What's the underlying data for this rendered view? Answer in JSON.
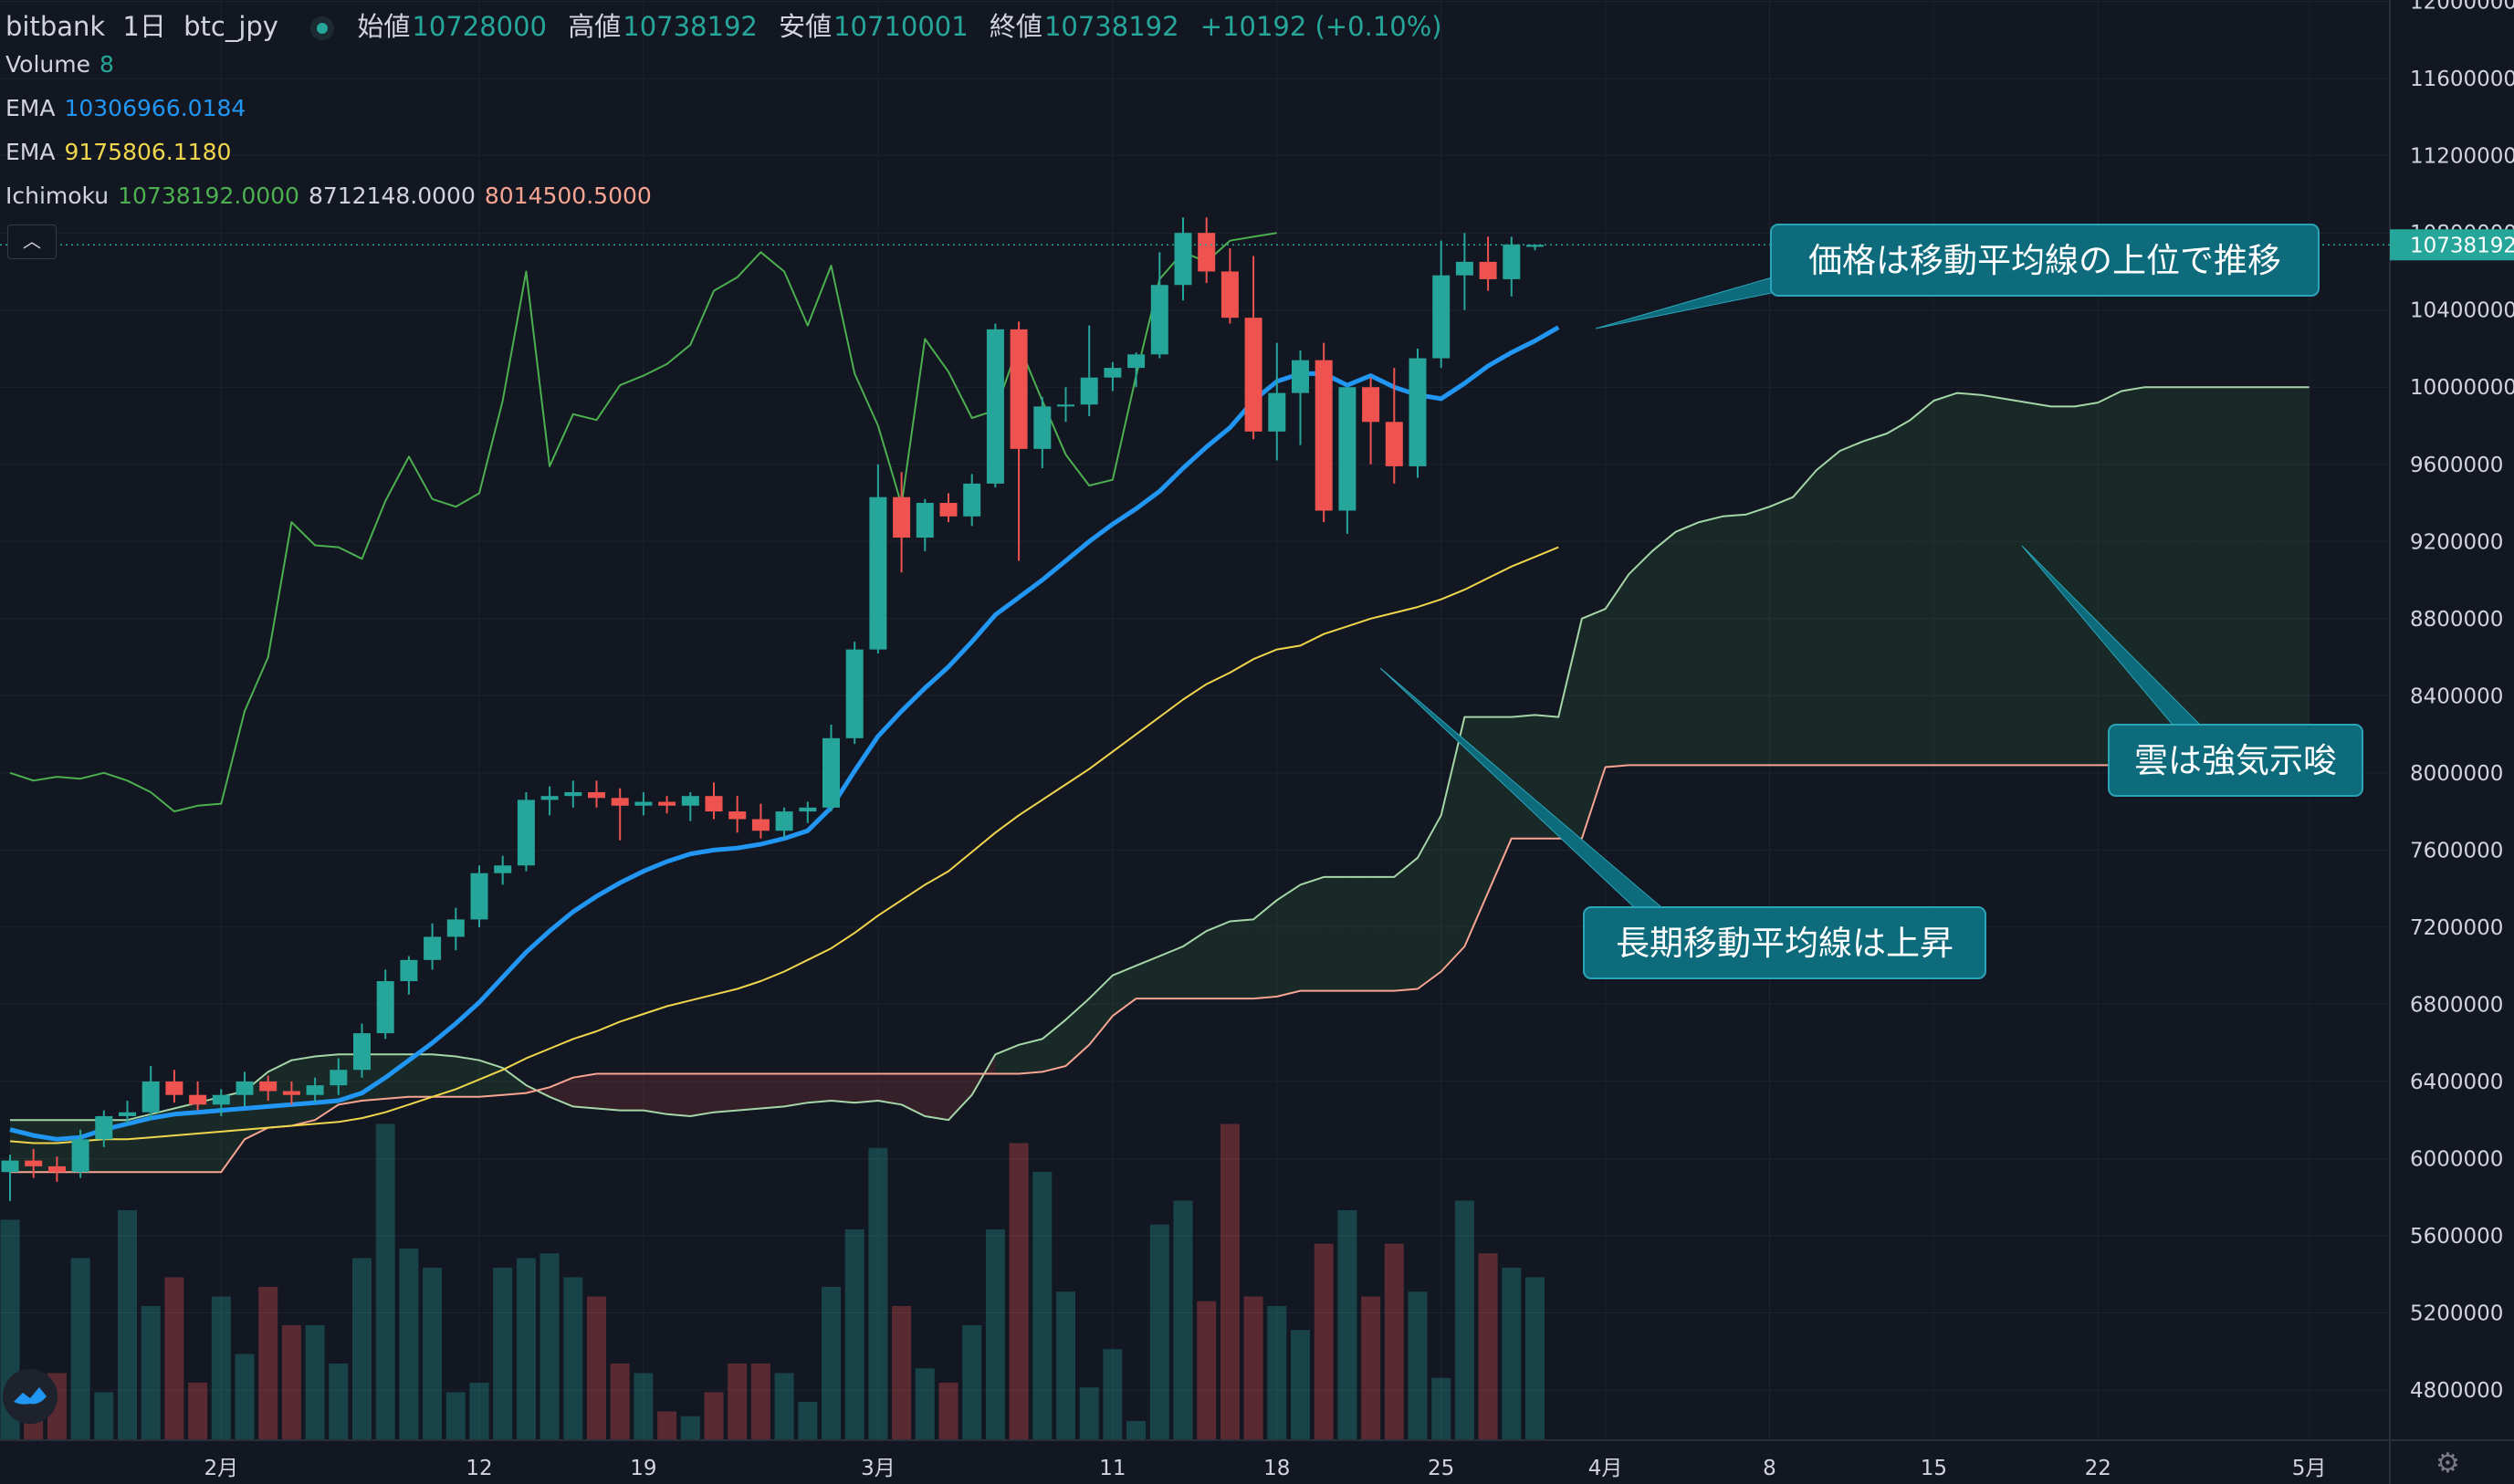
{
  "header": {
    "exchange": "bitbank",
    "interval": "1日",
    "symbol": "btc_jpy",
    "open_label": "始値",
    "open": "10728000",
    "high_label": "高値",
    "high": "10738192",
    "low_label": "安値",
    "low": "10710001",
    "close_label": "終値",
    "close": "10738192",
    "change": "+10192 (+0.10%)"
  },
  "legend": {
    "volume_label": "Volume",
    "volume_value": "8",
    "ema1_label": "EMA",
    "ema1_value": "10306966.0184",
    "ema2_label": "EMA",
    "ema2_value": "9175806.1180",
    "ichimoku_label": "Ichimoku",
    "ichimoku_v1": "10738192.0000",
    "ichimoku_v2": "8712148.0000",
    "ichimoku_v3": "8014500.5000"
  },
  "colors": {
    "background": "#131722",
    "up": "#26a69a",
    "down": "#ef5350",
    "ema_fast": "#2196f3",
    "ema_slow": "#f0d64c",
    "lagging": "#4caf50",
    "span_a": "#a5d6a7",
    "span_b": "#f7a592",
    "callout": "#0e6b7c"
  },
  "chart_data": {
    "type": "candlestick",
    "ylim": [
      4500000,
      12000000
    ],
    "y_ticks": [
      "12000000",
      "11600000",
      "11200000",
      "10800000",
      "10400000",
      "10000000",
      "9600000",
      "9200000",
      "8800000",
      "8400000",
      "8000000",
      "7600000",
      "7200000",
      "6800000",
      "6400000",
      "6000000",
      "5600000",
      "5200000",
      "4800000"
    ],
    "x_ticks": [
      {
        "label": "2月",
        "i": 9
      },
      {
        "label": "12",
        "i": 20
      },
      {
        "label": "19",
        "i": 27
      },
      {
        "label": "3月",
        "i": 37
      },
      {
        "label": "11",
        "i": 47
      },
      {
        "label": "18",
        "i": 54
      },
      {
        "label": "25",
        "i": 61
      },
      {
        "label": "4月",
        "i": 68
      },
      {
        "label": "8",
        "i": 75
      },
      {
        "label": "15",
        "i": 82
      },
      {
        "label": "22",
        "i": 89
      },
      {
        "label": "5月",
        "i": 98
      }
    ],
    "last_price_label": "10738192",
    "last_price": 10738192,
    "candles": [
      [
        5930000,
        6020000,
        5780000,
        5990000
      ],
      [
        5990000,
        6050000,
        5900000,
        5960000
      ],
      [
        5960000,
        6010000,
        5880000,
        5930000
      ],
      [
        5930000,
        6150000,
        5900000,
        6100000
      ],
      [
        6100000,
        6250000,
        6060000,
        6220000
      ],
      [
        6220000,
        6300000,
        6180000,
        6240000
      ],
      [
        6240000,
        6480000,
        6200000,
        6400000
      ],
      [
        6400000,
        6460000,
        6290000,
        6330000
      ],
      [
        6330000,
        6400000,
        6250000,
        6280000
      ],
      [
        6280000,
        6360000,
        6220000,
        6330000
      ],
      [
        6330000,
        6450000,
        6270000,
        6400000
      ],
      [
        6400000,
        6430000,
        6300000,
        6350000
      ],
      [
        6350000,
        6400000,
        6280000,
        6330000
      ],
      [
        6330000,
        6420000,
        6290000,
        6380000
      ],
      [
        6380000,
        6520000,
        6330000,
        6460000
      ],
      [
        6460000,
        6700000,
        6420000,
        6650000
      ],
      [
        6650000,
        6980000,
        6620000,
        6920000
      ],
      [
        6920000,
        7050000,
        6850000,
        7030000
      ],
      [
        7030000,
        7220000,
        6980000,
        7150000
      ],
      [
        7150000,
        7300000,
        7080000,
        7240000
      ],
      [
        7240000,
        7520000,
        7200000,
        7480000
      ],
      [
        7480000,
        7570000,
        7420000,
        7520000
      ],
      [
        7520000,
        7900000,
        7490000,
        7860000
      ],
      [
        7860000,
        7930000,
        7780000,
        7880000
      ],
      [
        7880000,
        7960000,
        7820000,
        7900000
      ],
      [
        7900000,
        7960000,
        7820000,
        7870000
      ],
      [
        7870000,
        7920000,
        7650000,
        7830000
      ],
      [
        7830000,
        7900000,
        7780000,
        7850000
      ],
      [
        7850000,
        7880000,
        7790000,
        7830000
      ],
      [
        7830000,
        7900000,
        7750000,
        7880000
      ],
      [
        7880000,
        7950000,
        7760000,
        7800000
      ],
      [
        7800000,
        7880000,
        7690000,
        7760000
      ],
      [
        7760000,
        7840000,
        7660000,
        7700000
      ],
      [
        7700000,
        7820000,
        7660000,
        7800000
      ],
      [
        7800000,
        7850000,
        7740000,
        7820000
      ],
      [
        7820000,
        8250000,
        7800000,
        8180000
      ],
      [
        8180000,
        8680000,
        8150000,
        8640000
      ],
      [
        8640000,
        9600000,
        8620000,
        9430000
      ],
      [
        9430000,
        9560000,
        9040000,
        9220000
      ],
      [
        9220000,
        9420000,
        9150000,
        9400000
      ],
      [
        9400000,
        9450000,
        9300000,
        9330000
      ],
      [
        9330000,
        9550000,
        9280000,
        9500000
      ],
      [
        9500000,
        10330000,
        9480000,
        10300000
      ],
      [
        10300000,
        10340000,
        9100000,
        9680000
      ],
      [
        9680000,
        9950000,
        9580000,
        9900000
      ],
      [
        9900000,
        10000000,
        9820000,
        9910000
      ],
      [
        9910000,
        10320000,
        9850000,
        10050000
      ],
      [
        10050000,
        10130000,
        9980000,
        10100000
      ],
      [
        10100000,
        10180000,
        10000000,
        10170000
      ],
      [
        10170000,
        10700000,
        10150000,
        10530000
      ],
      [
        10530000,
        10880000,
        10450000,
        10800000
      ],
      [
        10800000,
        10880000,
        10540000,
        10600000
      ],
      [
        10600000,
        10720000,
        10330000,
        10360000
      ],
      [
        10360000,
        10680000,
        9730000,
        9770000
      ],
      [
        9770000,
        10230000,
        9620000,
        9970000
      ],
      [
        9970000,
        10190000,
        9700000,
        10140000
      ],
      [
        10140000,
        10230000,
        9300000,
        9360000
      ],
      [
        9360000,
        10000000,
        9240000,
        10000000
      ],
      [
        10000000,
        10050000,
        9600000,
        9820000
      ],
      [
        9820000,
        10100000,
        9500000,
        9590000
      ],
      [
        9590000,
        10200000,
        9530000,
        10150000
      ],
      [
        10150000,
        10760000,
        10100000,
        10580000
      ],
      [
        10580000,
        10800000,
        10400000,
        10650000
      ],
      [
        10650000,
        10780000,
        10500000,
        10560000
      ],
      [
        10560000,
        10780000,
        10470000,
        10740000
      ],
      [
        10728000,
        10738192,
        10710001,
        10738192
      ]
    ],
    "volumes": [
      230,
      60,
      70,
      190,
      50,
      240,
      140,
      170,
      60,
      150,
      90,
      160,
      120,
      120,
      80,
      190,
      330,
      200,
      180,
      50,
      60,
      180,
      190,
      195,
      170,
      150,
      80,
      70,
      30,
      25,
      50,
      80,
      80,
      70,
      40,
      160,
      220,
      305,
      140,
      75,
      60,
      120,
      220,
      310,
      280,
      155,
      55,
      95,
      20,
      225,
      250,
      145,
      330,
      150,
      140,
      115,
      205,
      240,
      150,
      205,
      155,
      65,
      250,
      195,
      180,
      170
    ],
    "ema_fast": [
      6150000,
      6120000,
      6100000,
      6110000,
      6150000,
      6180000,
      6210000,
      6230000,
      6240000,
      6250000,
      6260000,
      6270000,
      6280000,
      6290000,
      6300000,
      6340000,
      6420000,
      6510000,
      6600000,
      6700000,
      6810000,
      6940000,
      7070000,
      7180000,
      7280000,
      7360000,
      7430000,
      7490000,
      7540000,
      7580000,
      7600000,
      7610000,
      7630000,
      7660000,
      7700000,
      7820000,
      8010000,
      8190000,
      8320000,
      8440000,
      8550000,
      8680000,
      8820000,
      8910000,
      9000000,
      9100000,
      9200000,
      9290000,
      9370000,
      9460000,
      9580000,
      9690000,
      9790000,
      9930000,
      10030000,
      10070000,
      10070000,
      10010000,
      10060000,
      10000000,
      9960000,
      9940000,
      10020000,
      10110000,
      10180000,
      10240000,
      10310000
    ],
    "ema_slow": [
      6090000,
      6080000,
      6080000,
      6090000,
      6100000,
      6100000,
      6110000,
      6120000,
      6130000,
      6140000,
      6150000,
      6160000,
      6170000,
      6180000,
      6190000,
      6210000,
      6240000,
      6280000,
      6320000,
      6360000,
      6410000,
      6460000,
      6520000,
      6570000,
      6620000,
      6660000,
      6710000,
      6750000,
      6790000,
      6820000,
      6850000,
      6880000,
      6920000,
      6970000,
      7030000,
      7090000,
      7170000,
      7260000,
      7340000,
      7420000,
      7490000,
      7590000,
      7690000,
      7780000,
      7860000,
      7940000,
      8020000,
      8110000,
      8200000,
      8290000,
      8380000,
      8460000,
      8520000,
      8590000,
      8640000,
      8660000,
      8720000,
      8760000,
      8800000,
      8830000,
      8860000,
      8900000,
      8950000,
      9010000,
      9070000,
      9120000,
      9170000
    ],
    "lagging_span": [
      8000000,
      7960000,
      7980000,
      7970000,
      8000000,
      7960000,
      7900000,
      7800000,
      7830000,
      7840000,
      8320000,
      8600000,
      9300000,
      9180000,
      9170000,
      9110000,
      9410000,
      9640000,
      9420000,
      9380000,
      9450000,
      9930000,
      10600000,
      9590000,
      9860000,
      9830000,
      10010000,
      10060000,
      10120000,
      10220000,
      10500000,
      10570000,
      10700000,
      10600000,
      10320000,
      10630000,
      10070000,
      9800000,
      9390000,
      10250000,
      10080000,
      9840000,
      9880000,
      10220000,
      9930000,
      9650000,
      9490000,
      9520000,
      10060000,
      10560000,
      10700000,
      10650000,
      10760000,
      10780000,
      10800000
    ],
    "span_a": [
      6200000,
      6200000,
      6200000,
      6200000,
      6200000,
      6200000,
      6230000,
      6260000,
      6290000,
      6320000,
      6350000,
      6450000,
      6510000,
      6530000,
      6540000,
      6540000,
      6540000,
      6540000,
      6540000,
      6530000,
      6510000,
      6470000,
      6380000,
      6320000,
      6270000,
      6260000,
      6250000,
      6250000,
      6230000,
      6220000,
      6240000,
      6250000,
      6260000,
      6270000,
      6290000,
      6300000,
      6290000,
      6300000,
      6280000,
      6220000,
      6200000,
      6330000,
      6540000,
      6590000,
      6620000,
      6720000,
      6830000,
      6950000,
      7000000,
      7050000,
      7100000,
      7180000,
      7230000,
      7240000,
      7340000,
      7420000,
      7460000,
      7460000,
      7460000,
      7460000,
      7560000,
      7780000,
      8290000,
      8290000,
      8290000,
      8300000,
      8290000,
      8800000,
      8850000,
      9030000,
      9150000,
      9250000,
      9300000,
      9330000,
      9340000,
      9380000,
      9430000,
      9570000,
      9670000,
      9720000,
      9760000,
      9830000,
      9930000,
      9970000,
      9960000,
      9940000,
      9920000,
      9900000,
      9900000,
      9920000,
      9980000,
      10000000,
      10000000,
      10000000,
      10000000,
      10000000,
      10000000,
      10000000,
      10000000
    ],
    "span_b": [
      5930000,
      5930000,
      5930000,
      5930000,
      5930000,
      5930000,
      5930000,
      5930000,
      5930000,
      5930000,
      6100000,
      6160000,
      6170000,
      6200000,
      6280000,
      6300000,
      6310000,
      6320000,
      6320000,
      6320000,
      6320000,
      6330000,
      6340000,
      6370000,
      6420000,
      6440000,
      6440000,
      6440000,
      6440000,
      6440000,
      6440000,
      6440000,
      6440000,
      6440000,
      6440000,
      6440000,
      6440000,
      6440000,
      6440000,
      6440000,
      6440000,
      6440000,
      6440000,
      6440000,
      6450000,
      6480000,
      6590000,
      6740000,
      6830000,
      6830000,
      6830000,
      6830000,
      6830000,
      6830000,
      6840000,
      6870000,
      6870000,
      6870000,
      6870000,
      6870000,
      6880000,
      6970000,
      7100000,
      7380000,
      7660000,
      7660000,
      7660000,
      7660000,
      8030000,
      8040000,
      8040000,
      8040000,
      8040000,
      8040000,
      8040000,
      8040000,
      8040000,
      8040000,
      8040000,
      8040000,
      8040000,
      8040000,
      8040000,
      8040000,
      8040000,
      8040000,
      8040000,
      8040000,
      8040000,
      8040000,
      8040000,
      8040000,
      8040000,
      8040000,
      8040000,
      8040000,
      8040000,
      8040000,
      8040000
    ],
    "annotations": [
      {
        "text": "価格は移動平均線の上位で推移"
      },
      {
        "text": "雲は強気示唆"
      },
      {
        "text": "長期移動平均線は上昇"
      }
    ]
  }
}
